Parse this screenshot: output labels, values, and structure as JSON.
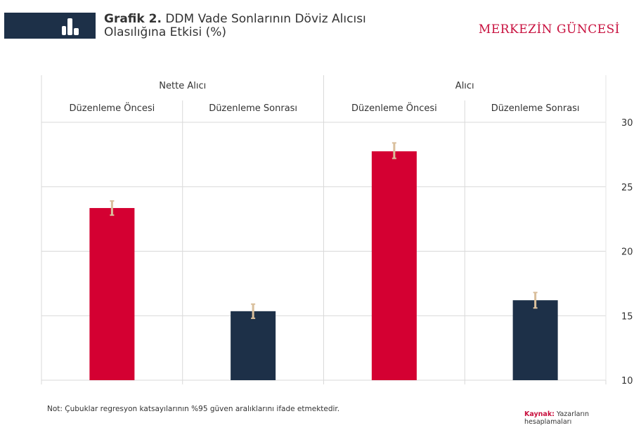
{
  "header": {
    "title_bold": "Grafik 2.",
    "title_line1": " DDM Vade Sonlarının Döviz Alıcısı",
    "title_line2": "Olasılığına Etkisi (%)",
    "brand": "MERKEZİN GÜNCESİ",
    "icon": "bar-chart-icon"
  },
  "colors": {
    "header_block": "#1d3048",
    "brand": "#c8103e",
    "red_bar": "#d40032",
    "navy_bar": "#1d3048",
    "error_bar": "#d9bf9c",
    "grid": "#d9d9d9"
  },
  "chart_data": {
    "type": "bar",
    "title": "DDM Vade Sonlarının Döviz Alıcısı Olasılığına Etkisi (%)",
    "groups": [
      {
        "label": "Nette Alıcı",
        "categories": [
          "Düzenleme Öncesi",
          "Düzenleme Sonrası"
        ]
      },
      {
        "label": "Alıcı",
        "categories": [
          "Düzenleme Öncesi",
          "Düzenleme Sonrası"
        ]
      }
    ],
    "bars": [
      {
        "group": "Nette Alıcı",
        "category": "Düzenleme Öncesi",
        "value": 23.35,
        "ci_low": 22.8,
        "ci_high": 23.9,
        "color": "#d40032"
      },
      {
        "group": "Nette Alıcı",
        "category": "Düzenleme Sonrası",
        "value": 15.35,
        "ci_low": 14.8,
        "ci_high": 15.9,
        "color": "#1d3048"
      },
      {
        "group": "Alıcı",
        "category": "Düzenleme Öncesi",
        "value": 27.75,
        "ci_low": 27.2,
        "ci_high": 28.4,
        "color": "#d40032"
      },
      {
        "group": "Alıcı",
        "category": "Düzenleme Sonrası",
        "value": 16.2,
        "ci_low": 15.6,
        "ci_high": 16.8,
        "color": "#1d3048"
      }
    ],
    "ylim": [
      10,
      30
    ],
    "yticks": [
      30,
      25,
      20,
      15,
      10
    ],
    "yaxis_position": "right",
    "grid": true,
    "xlabel": "",
    "ylabel": ""
  },
  "footer": {
    "note": "Not: Çubuklar regresyon katsayılarının  %95 güven aralıklarını ifade etmektedir.",
    "source_label": "Kaynak:",
    "source_line1": " Yazarların",
    "source_line2": "hesaplamaları"
  }
}
